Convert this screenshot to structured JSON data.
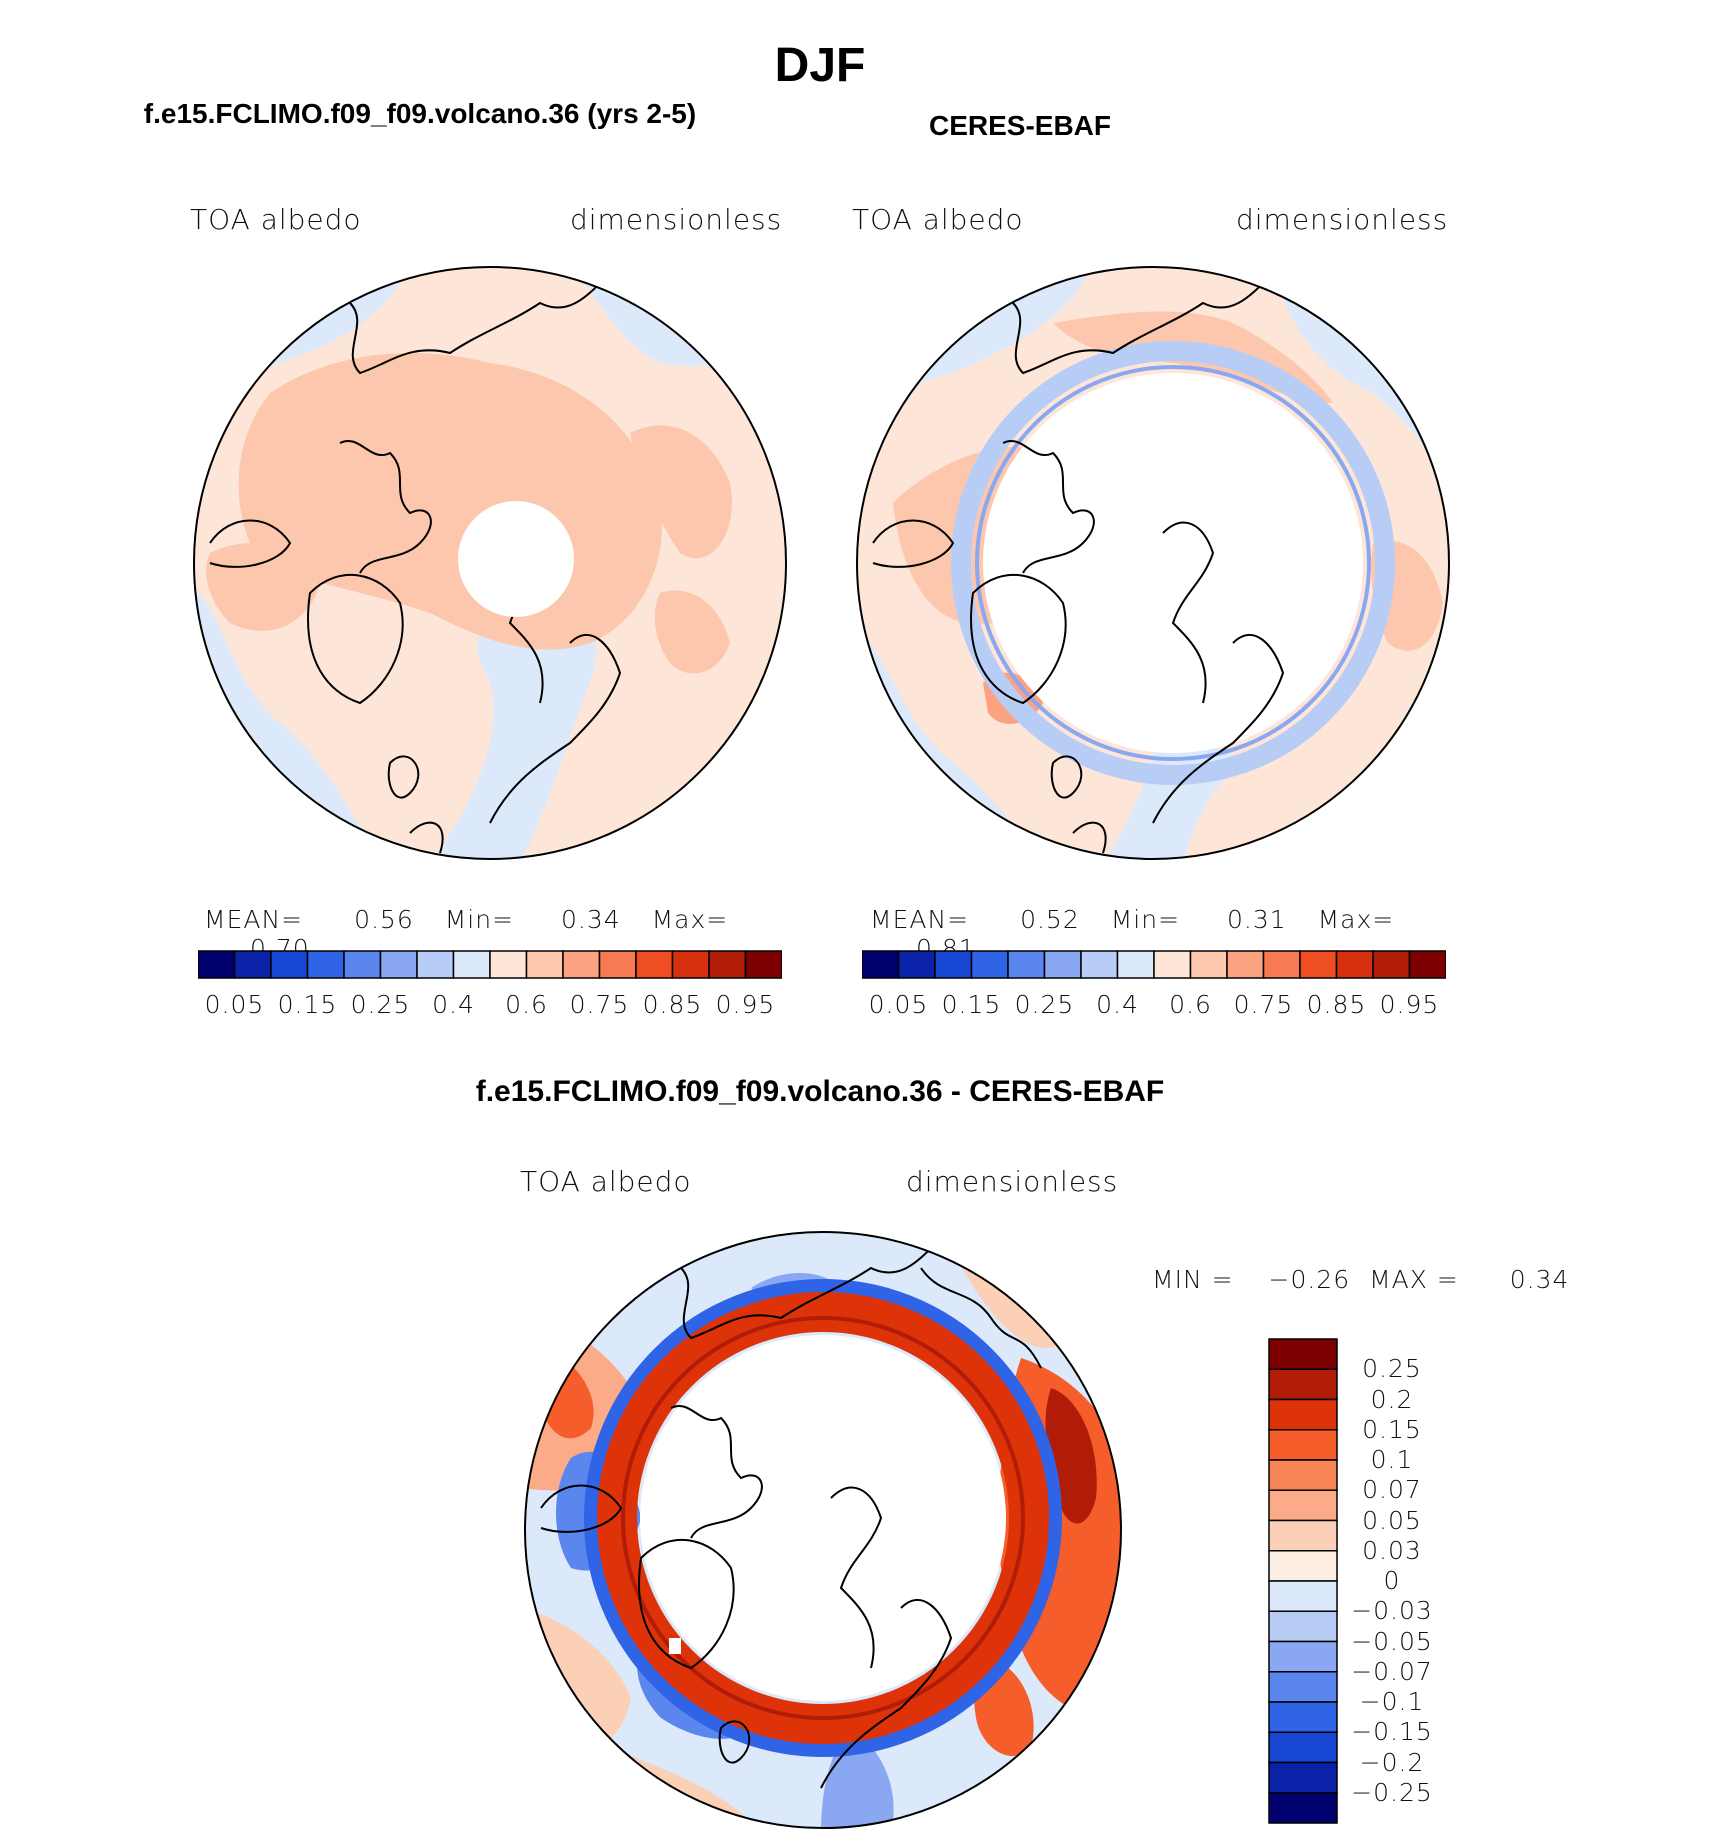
{
  "page": {
    "title": "DJF"
  },
  "panels": [
    {
      "title": "f.e15.FCLIMO.f09_f09.volcano.36 (yrs 2-5)",
      "left_label": "TOA albedo",
      "right_label": "dimensionless",
      "stats": {
        "mean_label": "MEAN=",
        "mean": "0.56",
        "min_label": "Min=",
        "min": "0.34",
        "max_label": "Max=",
        "max": "0.70"
      },
      "colorbar_ticks": [
        "0.05",
        "0.15",
        "0.25",
        "0.4",
        "0.6",
        "0.75",
        "0.85",
        "0.95"
      ]
    },
    {
      "title": "CERES-EBAF",
      "left_label": "TOA albedo",
      "right_label": "dimensionless",
      "stats": {
        "mean_label": "MEAN=",
        "mean": "0.52",
        "min_label": "Min=",
        "min": "0.31",
        "max_label": "Max=",
        "max": "0.81"
      },
      "colorbar_ticks": [
        "0.05",
        "0.15",
        "0.25",
        "0.4",
        "0.6",
        "0.75",
        "0.85",
        "0.95"
      ]
    }
  ],
  "diff_panel": {
    "title": "f.e15.FCLIMO.f09_f09.volcano.36 - CERES-EBAF",
    "left_label": "TOA albedo",
    "right_label": "dimensionless",
    "minmax": {
      "min_label": "MIN =",
      "min": "−0.26",
      "max_label": "MAX =",
      "max": "0.34"
    },
    "colorbar_labels": [
      "0.25",
      "0.2",
      "0.15",
      "0.1",
      "0.07",
      "0.05",
      "0.03",
      "0",
      "−0.03",
      "−0.05",
      "−0.07",
      "−0.1",
      "−0.15",
      "−0.2",
      "−0.25"
    ]
  },
  "colors": {
    "abs_scale": [
      "#00006e",
      "#0a22a8",
      "#1646d2",
      "#3064e6",
      "#5a86ee",
      "#8aa8f2",
      "#b8cdf6",
      "#dbe9fb",
      "#fde6d8",
      "#fcc7ad",
      "#fba280",
      "#f87a52",
      "#ef4d22",
      "#d6300f",
      "#b01c08",
      "#7c0002"
    ],
    "diff_scale": [
      "#7c0002",
      "#b01c08",
      "#de3309",
      "#f55d2a",
      "#f88556",
      "#fbab88",
      "#fcd0b7",
      "#fdeee4",
      "#dbe9fb",
      "#b8cdf6",
      "#8aa8f2",
      "#5a86ee",
      "#3064e6",
      "#1646d2",
      "#0a22a8",
      "#00006e"
    ]
  }
}
